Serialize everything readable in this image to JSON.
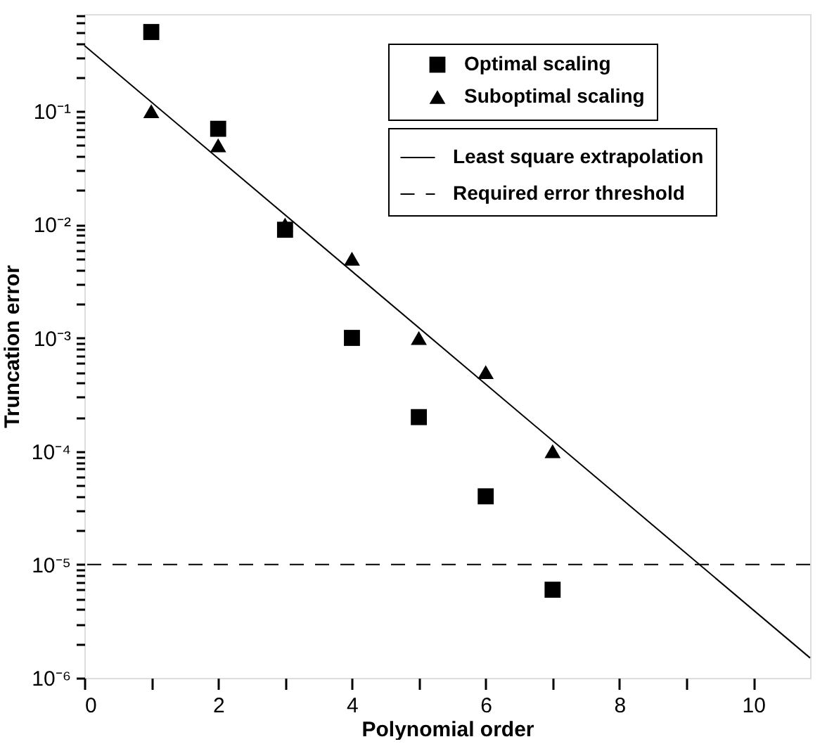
{
  "chart_data": {
    "type": "scatter",
    "xlabel": "Polynomial order",
    "ylabel": "Truncation error",
    "log": "y",
    "grid": false,
    "legend": "top right",
    "xlim": [
      0,
      10.85
    ],
    "ylim": [
      1e-06,
      0.72
    ],
    "xticks": [
      0,
      {
        "value": 1,
        "label": null
      },
      2,
      {
        "value": 3,
        "label": null
      },
      4,
      {
        "value": 5,
        "label": null
      },
      6,
      {
        "value": 7,
        "label": null
      },
      8,
      {
        "value": 9,
        "label": null
      },
      10
    ],
    "yticks": [
      {
        "value": 1e-06,
        "label": "10⁻⁶"
      },
      {
        "value": 2e-06,
        "label": null
      },
      {
        "value": 3e-06,
        "label": null
      },
      {
        "value": 4e-06,
        "label": null
      },
      {
        "value": 5e-06,
        "label": null
      },
      {
        "value": 6e-06,
        "label": null
      },
      {
        "value": 7e-06,
        "label": null
      },
      {
        "value": 8e-06,
        "label": null
      },
      {
        "value": 9e-06,
        "label": null
      },
      {
        "value": 1e-05,
        "label": "10⁻⁵"
      },
      {
        "value": 2e-05,
        "label": null
      },
      {
        "value": 3e-05,
        "label": null
      },
      {
        "value": 4e-05,
        "label": null
      },
      {
        "value": 5e-05,
        "label": null
      },
      {
        "value": 6e-05,
        "label": null
      },
      {
        "value": 7e-05,
        "label": null
      },
      {
        "value": 8e-05,
        "label": null
      },
      {
        "value": 9e-05,
        "label": null
      },
      {
        "value": 0.0001,
        "label": "10⁻⁴"
      },
      {
        "value": 0.0002,
        "label": null
      },
      {
        "value": 0.0003,
        "label": null
      },
      {
        "value": 0.0004,
        "label": null
      },
      {
        "value": 0.0005,
        "label": null
      },
      {
        "value": 0.0006,
        "label": null
      },
      {
        "value": 0.0007,
        "label": null
      },
      {
        "value": 0.0008,
        "label": null
      },
      {
        "value": 0.0009,
        "label": null
      },
      {
        "value": 0.001,
        "label": "10⁻³"
      },
      {
        "value": 0.002,
        "label": null
      },
      {
        "value": 0.003,
        "label": null
      },
      {
        "value": 0.004,
        "label": null
      },
      {
        "value": 0.005,
        "label": null
      },
      {
        "value": 0.006,
        "label": null
      },
      {
        "value": 0.007,
        "label": null
      },
      {
        "value": 0.008,
        "label": null
      },
      {
        "value": 0.009,
        "label": null
      },
      {
        "value": 0.01,
        "label": "10⁻²"
      },
      {
        "value": 0.02,
        "label": null
      },
      {
        "value": 0.03,
        "label": null
      },
      {
        "value": 0.04,
        "label": null
      },
      {
        "value": 0.05,
        "label": null
      },
      {
        "value": 0.06,
        "label": null
      },
      {
        "value": 0.07,
        "label": null
      },
      {
        "value": 0.08,
        "label": null
      },
      {
        "value": 0.09,
        "label": null
      },
      {
        "value": 0.1,
        "label": "10⁻¹"
      },
      {
        "value": 0.2,
        "label": null
      },
      {
        "value": 0.3,
        "label": null
      },
      {
        "value": 0.4,
        "label": null
      },
      {
        "value": 0.5,
        "label": null
      },
      {
        "value": 0.6,
        "label": null
      },
      {
        "value": 0.7,
        "label": null
      }
    ],
    "x": [
      1,
      2,
      3,
      4,
      5,
      6,
      7
    ],
    "series": [
      {
        "name": "Optimal scaling",
        "marker": "square",
        "color": "#000000",
        "values": [
          0.5,
          0.07,
          0.009,
          0.001,
          0.0002,
          4e-05,
          6e-06
        ]
      },
      {
        "name": "Suboptimal scaling",
        "marker": "triangle",
        "color": "#000000",
        "values": [
          0.1,
          0.05,
          0.01,
          0.005,
          0.001,
          0.0005,
          0.0001
        ]
      },
      {
        "name": "Least square extrapolation",
        "type": "line",
        "marker": "none",
        "line_style": "solid",
        "color": "#000000",
        "x": [
          0,
          10.85
        ],
        "values": [
          0.38,
          1.5e-06
        ]
      }
    ],
    "ref_lines": [
      {
        "axis": "y",
        "value": 1e-05,
        "label": "Required error threshold",
        "color": "#000000",
        "line_style": "dashed"
      }
    ]
  }
}
